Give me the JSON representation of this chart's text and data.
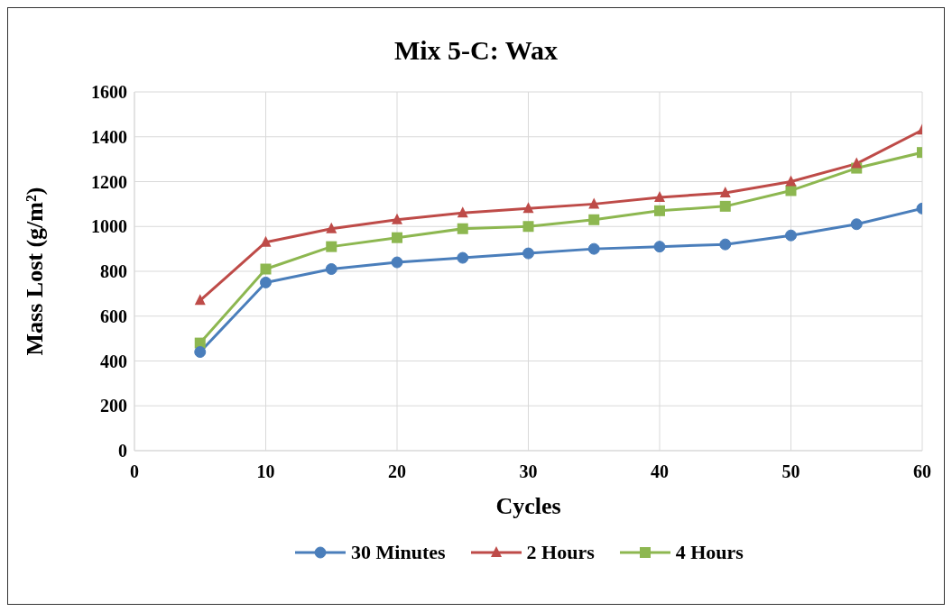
{
  "chart_data": {
    "type": "line",
    "title": "Mix 5-C: Wax",
    "xlabel": "Cycles",
    "ylabel": "Mass Lost (g/m²)",
    "x": [
      5,
      10,
      15,
      20,
      25,
      30,
      35,
      40,
      45,
      50,
      55,
      60
    ],
    "series": [
      {
        "name": "30 Minutes",
        "color": "#4a7ebb",
        "marker": "circle",
        "values": [
          440,
          750,
          810,
          840,
          860,
          880,
          900,
          910,
          920,
          960,
          1010,
          1080
        ]
      },
      {
        "name": "2 Hours",
        "color": "#be4b48",
        "marker": "triangle",
        "values": [
          670,
          930,
          990,
          1030,
          1060,
          1080,
          1100,
          1130,
          1150,
          1200,
          1280,
          1430
        ]
      },
      {
        "name": "4 Hours",
        "color": "#8db750",
        "marker": "square",
        "values": [
          480,
          810,
          910,
          950,
          990,
          1000,
          1030,
          1070,
          1090,
          1160,
          1260,
          1330
        ]
      }
    ],
    "xlim": [
      0,
      60
    ],
    "xticks": [
      0,
      10,
      20,
      30,
      40,
      50,
      60
    ],
    "ylim": [
      0,
      1600
    ],
    "yticks": [
      0,
      200,
      400,
      600,
      800,
      1000,
      1200,
      1400,
      1600
    ],
    "grid": true,
    "legend": "bottom",
    "line_style": "solid"
  }
}
